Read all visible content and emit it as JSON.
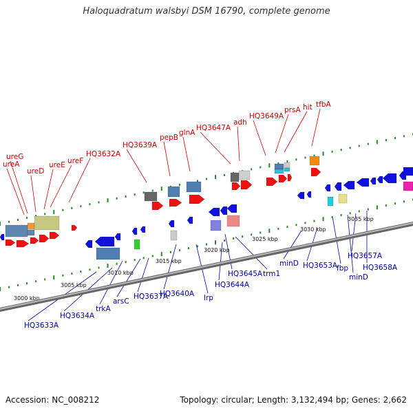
{
  "title": "Haloquadratum walsbyi DSM 16790, complete genome",
  "footer": {
    "accession": "Accession: NC_008212",
    "topology": "Topology: circular; Length: 3,132,494 bp; Genes: 2,662"
  },
  "colors": {
    "forward_label": "#cc0000",
    "reverse_label": "#0000aa",
    "forward_gene": "#ee1111",
    "reverse_gene": "#1111dd",
    "backbone": "#888888",
    "tick": "#228b22"
  },
  "forward_labels": [
    "ureG",
    "ureA",
    "ureD",
    "ureE",
    "ureF",
    "HQ3632A",
    "HQ3639A",
    "pepB",
    "glnA",
    "HQ3647A",
    "adh",
    "HQ3649A",
    "prsA",
    "hit",
    "tfbA"
  ],
  "reverse_labels": [
    "HQ3633A",
    "HQ3634A",
    "trkA",
    "arsC",
    "HQ3637A",
    "HQ3640A",
    "lrp",
    "HQ3644A",
    "HQ3645A",
    "trm1",
    "minD",
    "HQ3653A",
    "fbp",
    "minD",
    "HQ3657A",
    "HQ3658A"
  ],
  "ticks": [
    "3000 kbp",
    "3005 kbp",
    "3010 kbp",
    "3015 kbp",
    "3020 kbp",
    "3025 kbp",
    "3030 kbp",
    "3035 kbp"
  ]
}
